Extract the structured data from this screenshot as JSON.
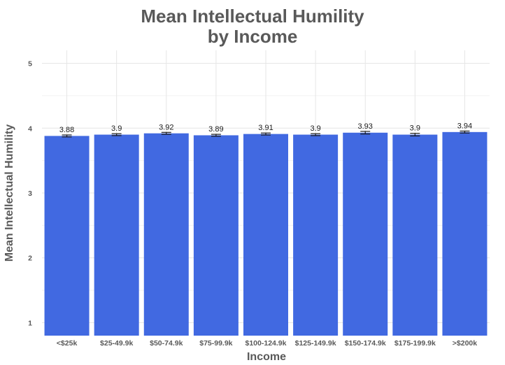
{
  "chart_data": {
    "type": "bar",
    "title_lines": [
      "Mean Intellectual Humility",
      "by Income"
    ],
    "xlabel": "Income",
    "ylabel": "Mean Intellectual Humility",
    "categories": [
      "<$25k",
      "$25-49.9k",
      "$50-74.9k",
      "$75-99.9k",
      "$100-124.9k",
      "$125-149.9k",
      "$150-174.9k",
      "$175-199.9k",
      ">$200k"
    ],
    "values": [
      3.88,
      3.9,
      3.92,
      3.89,
      3.91,
      3.9,
      3.93,
      3.9,
      3.94
    ],
    "value_labels": [
      "3.88",
      "3.9",
      "3.92",
      "3.89",
      "3.91",
      "3.9",
      "3.93",
      "3.9",
      "3.94"
    ],
    "error": [
      0.015,
      0.015,
      0.015,
      0.015,
      0.015,
      0.015,
      0.02,
      0.02,
      0.015
    ],
    "ylim": [
      0.8,
      5.2
    ],
    "yticks": [
      1,
      2,
      3,
      4,
      5
    ],
    "grid": true,
    "bar_color": "#4169E1"
  }
}
